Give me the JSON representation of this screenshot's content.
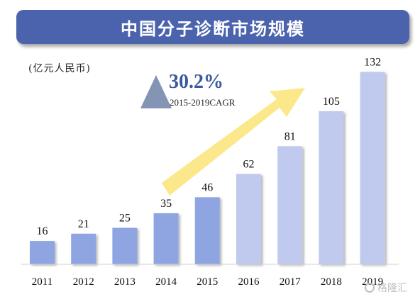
{
  "header": {
    "title": "中国分子诊断市场规模"
  },
  "unit_label": "(亿元人民币)",
  "cagr": {
    "value": "30.2%",
    "label": "2015-2019CAGR"
  },
  "watermark": {
    "text": "格隆汇",
    "icon": "gelonghui-logo-icon"
  },
  "colors": {
    "banner": "#4b63ad",
    "bar_actual": "#8ea5e2",
    "bar_forecast": "#bfcaee",
    "arrow": "#fbe88a",
    "triangle": "#8494b4",
    "cagr_text": "#3d5aa0"
  },
  "chart_data": {
    "type": "bar",
    "categories": [
      "2011",
      "2012",
      "2013",
      "2014",
      "2015",
      "2016",
      "2017",
      "2018",
      "2019"
    ],
    "values": [
      16,
      21,
      25,
      35,
      46,
      62,
      81,
      105,
      132
    ],
    "forecast_from_index": 5,
    "title": "中国分子诊断市场规模",
    "xlabel": "",
    "ylabel": "",
    "ylim": [
      0,
      140
    ],
    "grid": false,
    "legend": "none",
    "data_labels": true
  }
}
